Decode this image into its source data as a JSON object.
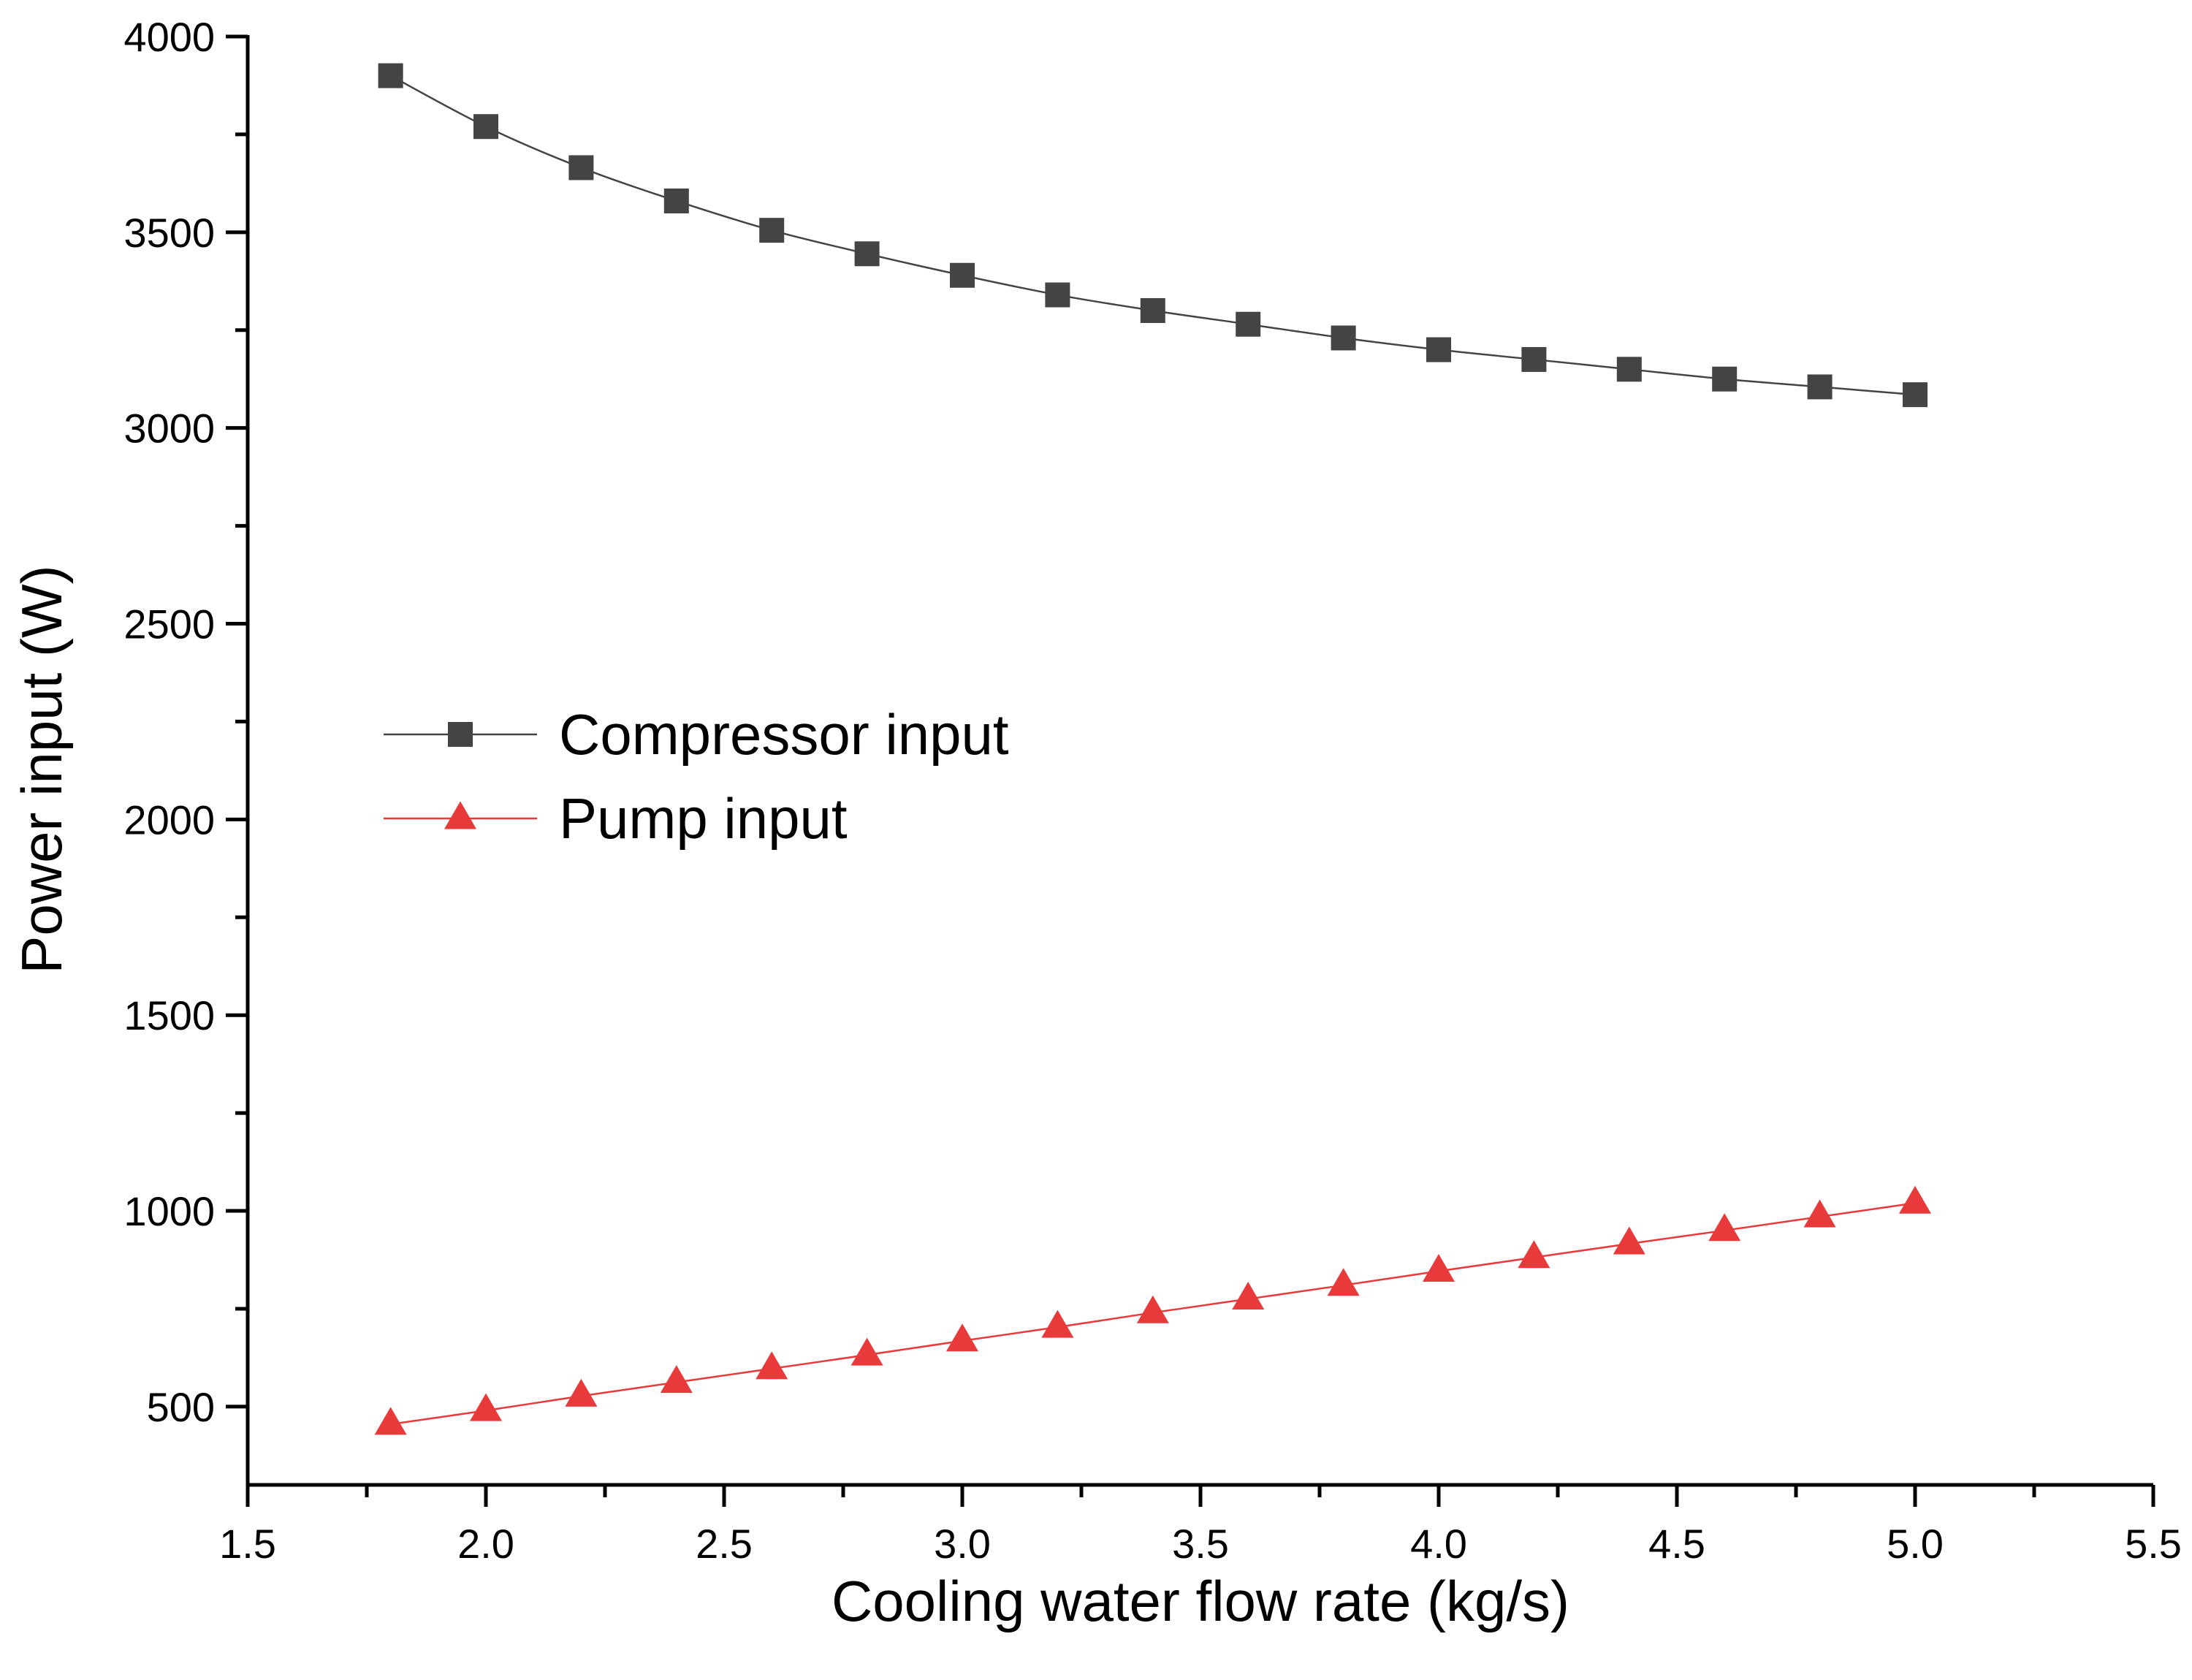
{
  "chart_data": {
    "type": "line",
    "title": "",
    "xlabel": "Cooling water flow rate (kg/s)",
    "ylabel": "Power input (W)",
    "xlim": [
      1.5,
      5.5
    ],
    "ylim": [
      300,
      4000
    ],
    "xticks": [
      1.5,
      2.0,
      2.5,
      3.0,
      3.5,
      4.0,
      4.5,
      5.0,
      5.5
    ],
    "xtick_labels": [
      "1.5",
      "2.0",
      "2.5",
      "3.0",
      "3.5",
      "4.0",
      "4.5",
      "5.0",
      "5.5"
    ],
    "yticks": [
      500,
      1000,
      1500,
      2000,
      2500,
      3000,
      3500,
      4000
    ],
    "ytick_labels": [
      "500",
      "1000",
      "1500",
      "2000",
      "2500",
      "3000",
      "3500",
      "4000"
    ],
    "grid": false,
    "legend_position": "center-left",
    "x": [
      1.8,
      2.0,
      2.2,
      2.4,
      2.6,
      2.8,
      3.0,
      3.2,
      3.4,
      3.6,
      3.8,
      4.0,
      4.2,
      4.4,
      4.6,
      4.8,
      5.0
    ],
    "series": [
      {
        "name": "Compressor input",
        "color": "#444444",
        "marker": "square",
        "values": [
          3900,
          3770,
          3665,
          3580,
          3505,
          3445,
          3390,
          3340,
          3300,
          3265,
          3230,
          3200,
          3175,
          3150,
          3125,
          3105,
          3085
        ]
      },
      {
        "name": "Pump input",
        "color": "#e83a3a",
        "marker": "triangle",
        "values": [
          455,
          490,
          527,
          562,
          597,
          632,
          668,
          703,
          740,
          775,
          810,
          846,
          881,
          916,
          950,
          985,
          1020
        ]
      }
    ]
  }
}
